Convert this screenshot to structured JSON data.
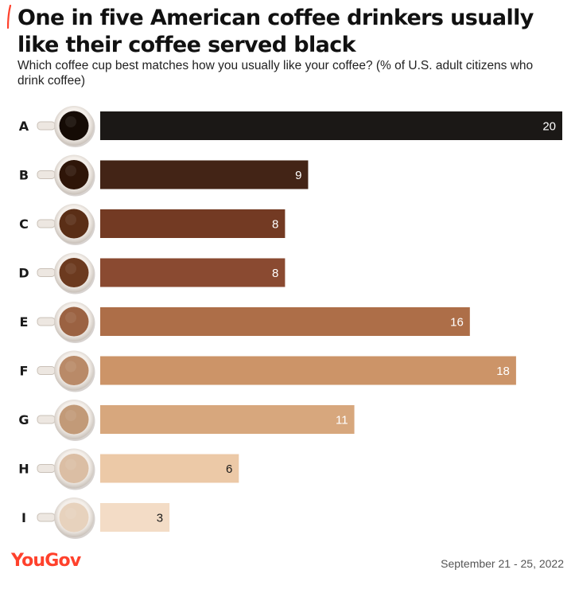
{
  "header": {
    "title": "One in five American coffee drinkers usually like their coffee served black",
    "subtitle": "Which coffee cup best matches how you usually like your coffee? (% of U.S. adult citizens who drink coffee)",
    "accent_color": "#ff412c"
  },
  "footer": {
    "logo": "YouGov",
    "date": "September 21 - 25, 2022"
  },
  "chart_data": {
    "type": "bar",
    "orientation": "horizontal",
    "categories": [
      "A",
      "B",
      "C",
      "D",
      "E",
      "F",
      "G",
      "H",
      "I"
    ],
    "values": [
      20,
      9,
      8,
      8,
      16,
      18,
      11,
      6,
      3
    ],
    "colors": [
      "#1b1816",
      "#432416",
      "#733a23",
      "#8a4a31",
      "#ad6e48",
      "#cc9468",
      "#d7a77d",
      "#ecc9a7",
      "#f3dcc6"
    ],
    "coffee_colors": [
      "#150b05",
      "#2e1508",
      "#5a2e16",
      "#6c3a1f",
      "#9b6242",
      "#b98a68",
      "#c29a78",
      "#dbbea4",
      "#e7d2bd"
    ],
    "label_colors": [
      "#ffffff",
      "#ffffff",
      "#ffffff",
      "#ffffff",
      "#ffffff",
      "#ffffff",
      "#ffffff",
      "#1a1a1a",
      "#1a1a1a"
    ],
    "xlim": [
      0,
      20
    ],
    "grid": false,
    "legend": "none"
  }
}
